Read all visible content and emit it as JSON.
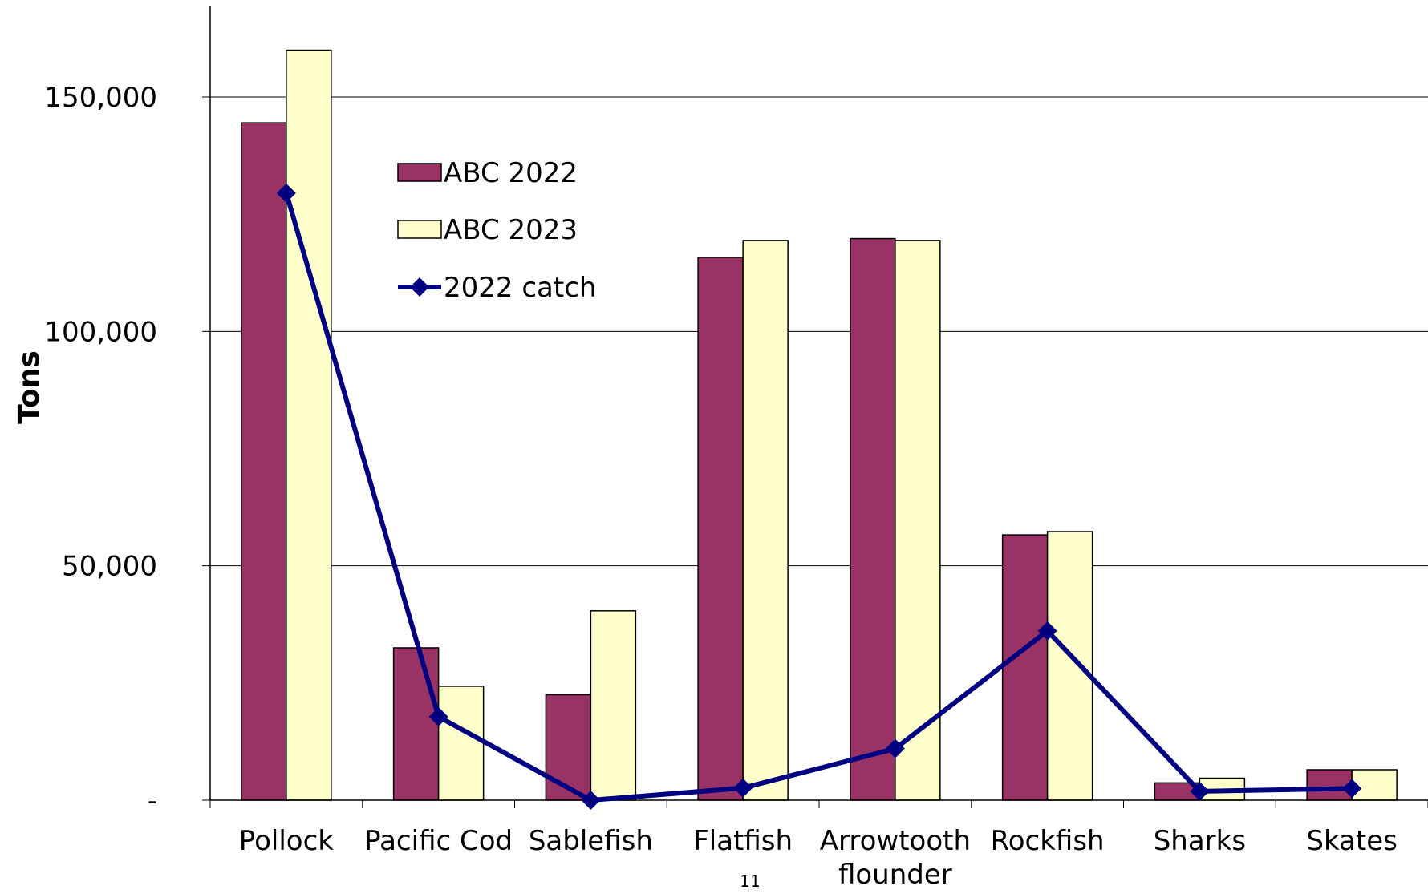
{
  "chart_data": {
    "type": "bar",
    "title": "",
    "xlabel": "",
    "ylabel": "Tons",
    "ylim": [
      0,
      170000
    ],
    "yticks": [
      0,
      50000,
      100000,
      150000
    ],
    "ytick_labels": [
      "-",
      "50,000",
      "100,000",
      "150,000"
    ],
    "grid": "horizontal",
    "legend_position": "upper-left",
    "categories": [
      "Pollock",
      "Pacific Cod",
      "Sablefish",
      "Flatfish",
      "Arrowtooth flounder",
      "Rockfish",
      "Sharks",
      "Skates"
    ],
    "series": [
      {
        "name": "ABC 2022",
        "kind": "bar",
        "color": "#993366",
        "values": [
          144500,
          32500,
          22500,
          115800,
          119800,
          56600,
          3700,
          6500
        ]
      },
      {
        "name": "ABC 2023",
        "kind": "bar",
        "color": "#FFFFCC",
        "values": [
          160000,
          24300,
          40400,
          119400,
          119400,
          57300,
          4700,
          6500
        ]
      },
      {
        "name": "2022 catch",
        "kind": "line",
        "color": "#000080",
        "values": [
          129500,
          17800,
          0,
          2600,
          11000,
          36100,
          1900,
          2500
        ]
      }
    ]
  },
  "page": {
    "number": "11"
  }
}
